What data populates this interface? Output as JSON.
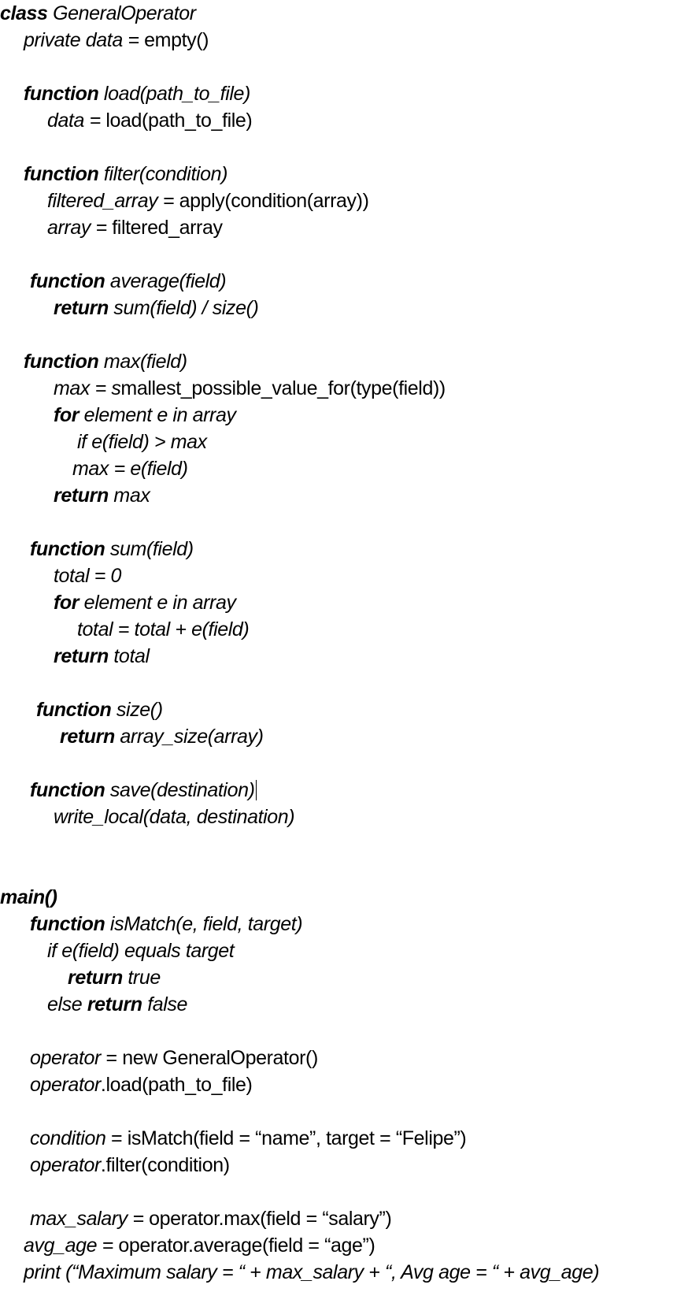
{
  "lines": [
    {
      "indent": 0,
      "segments": [
        {
          "t": "class",
          "s": "bi"
        },
        {
          "t": " GeneralOperator",
          "s": "i"
        }
      ]
    },
    {
      "indent": 30,
      "segments": [
        {
          "t": "private data =",
          "s": "i"
        },
        {
          "t": " empty()",
          "s": "n"
        }
      ]
    },
    null,
    {
      "indent": 30,
      "segments": [
        {
          "t": "function",
          "s": "bi"
        },
        {
          "t": " load(path_to_file)",
          "s": "i"
        }
      ]
    },
    {
      "indent": 60,
      "segments": [
        {
          "t": "data =",
          "s": "i"
        },
        {
          "t": " load(path_to_file)",
          "s": "n"
        }
      ]
    },
    null,
    {
      "indent": 30,
      "segments": [
        {
          "t": "function",
          "s": "bi"
        },
        {
          "t": " filter(condition)",
          "s": "i"
        }
      ]
    },
    {
      "indent": 60,
      "segments": [
        {
          "t": "filtered_array =",
          "s": "i"
        },
        {
          "t": " apply(condition(array))",
          "s": "n"
        }
      ]
    },
    {
      "indent": 60,
      "segments": [
        {
          "t": "array =",
          "s": "i"
        },
        {
          "t": " filtered_array",
          "s": "n"
        }
      ]
    },
    null,
    {
      "indent": 38,
      "segments": [
        {
          "t": "function",
          "s": "bi"
        },
        {
          "t": " average(field)",
          "s": "i"
        }
      ]
    },
    {
      "indent": 68,
      "segments": [
        {
          "t": "return",
          "s": "bi"
        },
        {
          "t": " sum(field) / size()",
          "s": "i"
        }
      ]
    },
    null,
    {
      "indent": 30,
      "segments": [
        {
          "t": "function",
          "s": "bi"
        },
        {
          "t": " max(field)",
          "s": "i"
        }
      ]
    },
    {
      "indent": 68,
      "segments": [
        {
          "t": "max = s",
          "s": "i"
        },
        {
          "t": "mallest_possible_value_for(type(field))",
          "s": "n"
        }
      ]
    },
    {
      "indent": 68,
      "segments": [
        {
          "t": "for",
          "s": "bi"
        },
        {
          "t": " element e in array",
          "s": "i"
        }
      ]
    },
    {
      "indent": 98,
      "segments": [
        {
          "t": "if e(field) > max",
          "s": "i"
        }
      ]
    },
    {
      "indent": 92,
      "segments": [
        {
          "t": "max = e(field)",
          "s": "i"
        }
      ]
    },
    {
      "indent": 68,
      "segments": [
        {
          "t": "return",
          "s": "bi"
        },
        {
          "t": " max",
          "s": "i"
        }
      ]
    },
    null,
    {
      "indent": 38,
      "segments": [
        {
          "t": "function",
          "s": "bi"
        },
        {
          "t": " sum(field)",
          "s": "i"
        }
      ]
    },
    {
      "indent": 68,
      "segments": [
        {
          "t": "total = 0",
          "s": "i"
        }
      ]
    },
    {
      "indent": 68,
      "segments": [
        {
          "t": "for",
          "s": "bi"
        },
        {
          "t": " element e in array",
          "s": "i"
        }
      ]
    },
    {
      "indent": 98,
      "segments": [
        {
          "t": "total = total + e(field)",
          "s": "i"
        }
      ]
    },
    {
      "indent": 68,
      "segments": [
        {
          "t": "return",
          "s": "bi"
        },
        {
          "t": " total",
          "s": "i"
        }
      ]
    },
    null,
    {
      "indent": 46,
      "segments": [
        {
          "t": "function",
          "s": "bi"
        },
        {
          "t": " size()",
          "s": "i"
        }
      ]
    },
    {
      "indent": 76,
      "segments": [
        {
          "t": "return",
          "s": "bi"
        },
        {
          "t": " array_size(array)",
          "s": "i"
        }
      ]
    },
    null,
    {
      "indent": 38,
      "segments": [
        {
          "t": "function",
          "s": "bi"
        },
        {
          "t": " save(destination)",
          "s": "i"
        }
      ],
      "caret": true
    },
    {
      "indent": 68,
      "segments": [
        {
          "t": "write_local(data, destination)",
          "s": "i"
        }
      ]
    },
    null,
    null,
    {
      "indent": 0,
      "segments": [
        {
          "t": "main()",
          "s": "bi"
        }
      ]
    },
    {
      "indent": 38,
      "segments": [
        {
          "t": "function",
          "s": "bi"
        },
        {
          "t": " isMatch(e, field, target)",
          "s": "i"
        }
      ]
    },
    {
      "indent": 60,
      "segments": [
        {
          "t": "if e(field) equals target",
          "s": "i"
        }
      ]
    },
    {
      "indent": 86,
      "segments": [
        {
          "t": "return",
          "s": "bi"
        },
        {
          "t": " true",
          "s": "i"
        }
      ]
    },
    {
      "indent": 60,
      "segments": [
        {
          "t": "else ",
          "s": "i"
        },
        {
          "t": "return",
          "s": "bi"
        },
        {
          "t": " false",
          "s": "i"
        }
      ]
    },
    null,
    {
      "indent": 38,
      "segments": [
        {
          "t": "operator",
          "s": "i"
        },
        {
          "t": " = new GeneralOperator()",
          "s": "n"
        }
      ]
    },
    {
      "indent": 38,
      "segments": [
        {
          "t": "operator",
          "s": "i"
        },
        {
          "t": ".load(path_to_file)",
          "s": "n"
        }
      ]
    },
    null,
    {
      "indent": 38,
      "segments": [
        {
          "t": "condition",
          "s": "i"
        },
        {
          "t": " = isMatch(field = “name”, target = “Felipe”)",
          "s": "n"
        }
      ]
    },
    {
      "indent": 38,
      "segments": [
        {
          "t": "operator",
          "s": "i"
        },
        {
          "t": ".filter(condition)",
          "s": "n"
        }
      ]
    },
    null,
    {
      "indent": 38,
      "segments": [
        {
          "t": "max_salary =",
          "s": "i"
        },
        {
          "t": " operator.max(field = “salary”)",
          "s": "n"
        }
      ]
    },
    {
      "indent": 30,
      "segments": [
        {
          "t": "avg_age =",
          "s": "i"
        },
        {
          "t": " operator.average(field = “age”)",
          "s": "n"
        }
      ]
    },
    {
      "indent": 30,
      "segments": [
        {
          "t": "print (“Maximum salary = “ + max_salary + “, Avg age = “ + avg_age)",
          "s": "i"
        }
      ]
    }
  ]
}
